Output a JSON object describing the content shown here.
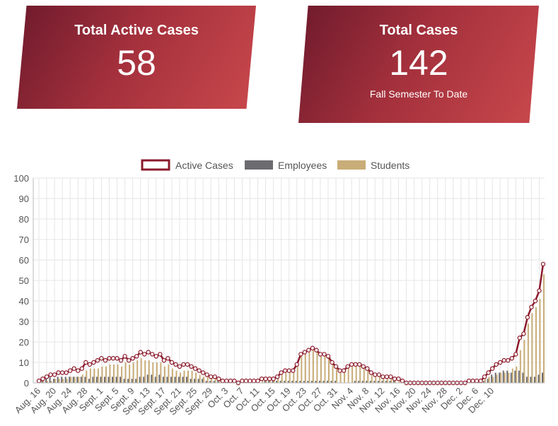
{
  "cards": {
    "active": {
      "title": "Total Active Cases",
      "value": "58"
    },
    "total": {
      "title": "Total Cases",
      "value": "142",
      "subtitle": "Fall Semester To Date"
    }
  },
  "colors": {
    "active": "#8b1a2b",
    "employees": "#6b6b70",
    "students": "#c9ad78",
    "grid": "#e5e5e5"
  },
  "chart_data": {
    "type": "bar",
    "legend": [
      "Active Cases",
      "Employees",
      "Students"
    ],
    "legend_position": "top",
    "grid": true,
    "ylim": [
      0,
      100
    ],
    "y_ticks": [
      0,
      10,
      20,
      30,
      40,
      50,
      60,
      70,
      80,
      90,
      100
    ],
    "x_tick_labels": [
      "Aug. 16",
      "Aug. 20",
      "Aug. 24",
      "Aug. 28",
      "Sept. 1",
      "Sept. 5",
      "Sept. 9",
      "Sept. 13",
      "Sept. 17",
      "Sept. 21",
      "Sept. 25",
      "Sept. 29",
      "Oct. 3",
      "Oct. 7",
      "Oct. 11",
      "Oct. 15",
      "Oct. 19",
      "Oct. 23",
      "Oct. 27",
      "Oct. 31",
      "Nov. 4",
      "Nov. 8",
      "Nov. 12",
      "Nov. 16",
      "Nov. 20",
      "Nov. 24",
      "Nov. 28",
      "Dec. 2",
      "Dec. 6",
      "Dec. 10"
    ],
    "x_tick_every": 4,
    "series": [
      {
        "name": "Active Cases",
        "type": "line",
        "values": [
          1,
          2,
          3,
          4,
          4,
          5,
          5,
          5,
          6,
          7,
          6,
          7,
          10,
          9,
          10,
          11,
          12,
          11,
          12,
          12,
          12,
          11,
          13,
          11,
          12,
          13,
          15,
          14,
          15,
          14,
          13,
          14,
          11,
          12,
          10,
          9,
          8,
          9,
          9,
          8,
          7,
          6,
          5,
          4,
          3,
          3,
          2,
          1,
          1,
          1,
          1,
          0,
          1,
          1,
          1,
          1,
          1,
          2,
          2,
          2,
          2,
          3,
          5,
          6,
          6,
          6,
          9,
          14,
          15,
          16,
          17,
          16,
          14,
          14,
          13,
          10,
          8,
          6,
          6,
          8,
          9,
          9,
          9,
          8,
          7,
          5,
          4,
          4,
          3,
          3,
          3,
          2,
          2,
          1,
          0,
          0,
          0,
          0,
          0,
          0,
          0,
          0,
          0,
          0,
          0,
          0,
          0,
          0,
          0,
          0,
          1,
          1,
          1,
          1,
          3,
          5,
          7,
          9,
          10,
          11,
          11,
          12,
          14,
          22,
          24,
          32,
          37,
          40,
          45,
          58
        ]
      },
      {
        "name": "Employees",
        "type": "bar",
        "values": [
          1,
          2,
          2,
          3,
          2,
          3,
          3,
          3,
          3,
          3,
          3,
          3,
          3,
          2,
          3,
          3,
          3,
          3,
          3,
          3,
          3,
          3,
          2,
          2,
          2,
          2,
          3,
          3,
          4,
          4,
          3,
          4,
          3,
          3,
          3,
          3,
          3,
          3,
          3,
          2,
          2,
          2,
          2,
          1,
          1,
          1,
          1,
          0,
          0,
          0,
          0,
          0,
          0,
          0,
          0,
          0,
          0,
          0,
          1,
          1,
          1,
          1,
          1,
          1,
          1,
          1,
          1,
          1,
          1,
          1,
          1,
          1,
          1,
          1,
          1,
          1,
          1,
          0,
          0,
          0,
          0,
          1,
          1,
          1,
          1,
          1,
          1,
          1,
          1,
          1,
          1,
          1,
          0,
          0,
          0,
          0,
          0,
          0,
          0,
          0,
          0,
          0,
          0,
          0,
          0,
          0,
          0,
          0,
          0,
          0,
          0,
          0,
          0,
          0,
          1,
          2,
          4,
          5,
          5,
          6,
          6,
          5,
          6,
          6,
          5,
          3,
          3,
          3,
          4,
          5
        ]
      },
      {
        "name": "Students",
        "type": "bar",
        "values": [
          0,
          1,
          1,
          1,
          2,
          2,
          2,
          2,
          3,
          3,
          3,
          4,
          6,
          7,
          7,
          7,
          8,
          8,
          9,
          9,
          9,
          8,
          10,
          9,
          10,
          11,
          12,
          11,
          11,
          10,
          10,
          10,
          8,
          9,
          7,
          6,
          5,
          6,
          6,
          6,
          5,
          4,
          3,
          3,
          2,
          2,
          1,
          1,
          1,
          1,
          1,
          0,
          1,
          1,
          1,
          1,
          1,
          2,
          1,
          1,
          1,
          2,
          4,
          5,
          5,
          5,
          8,
          13,
          14,
          15,
          16,
          15,
          13,
          13,
          12,
          9,
          7,
          6,
          6,
          7,
          8,
          8,
          8,
          7,
          6,
          4,
          3,
          3,
          2,
          2,
          2,
          1,
          2,
          1,
          0,
          0,
          0,
          0,
          0,
          0,
          0,
          0,
          0,
          0,
          0,
          0,
          0,
          0,
          0,
          0,
          1,
          1,
          1,
          1,
          2,
          3,
          3,
          4,
          5,
          5,
          5,
          7,
          8,
          16,
          21,
          29,
          34,
          37,
          41,
          53
        ]
      }
    ]
  }
}
